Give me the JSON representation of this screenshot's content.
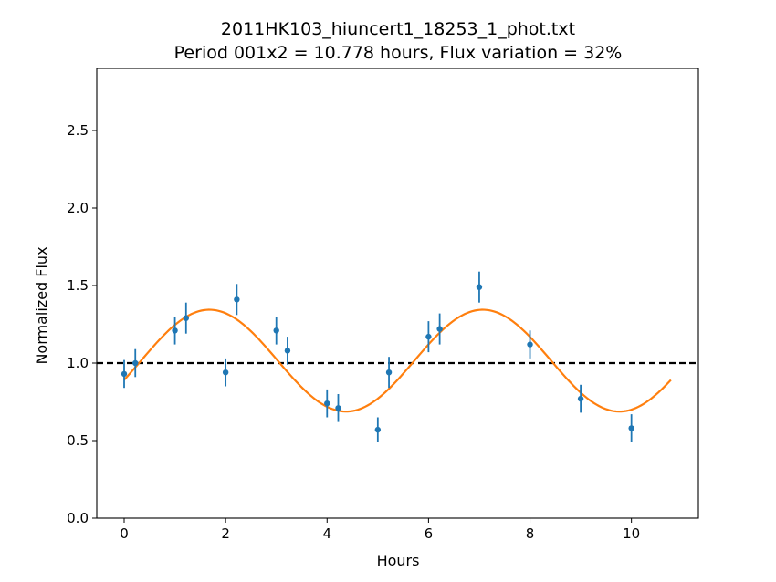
{
  "chart_data": {
    "type": "scatter",
    "title": "2011HK103_hiuncert1_18253_1_phot.txt",
    "subtitle": "Period 001x2 = 10.778 hours, Flux variation = 32%",
    "xlabel": "Hours",
    "ylabel": "Normalized Flux",
    "xlim": [
      -0.54,
      11.32
    ],
    "ylim": [
      0.0,
      2.9
    ],
    "xticks": [
      "0",
      "2",
      "4",
      "6",
      "8",
      "10"
    ],
    "yticks": [
      "0.0",
      "0.5",
      "1.0",
      "1.5",
      "2.0",
      "2.5"
    ],
    "grid": false,
    "series": [
      {
        "kind": "errorbar",
        "color": "#1f77b4",
        "x": [
          0.0,
          0.22,
          1.0,
          1.22,
          2.0,
          2.22,
          3.0,
          3.22,
          4.0,
          4.22,
          5.0,
          5.22,
          6.0,
          6.22,
          7.0,
          8.0,
          9.0,
          10.0
        ],
        "y": [
          0.93,
          1.0,
          1.21,
          1.29,
          0.94,
          1.41,
          1.21,
          1.08,
          0.74,
          0.71,
          0.57,
          0.94,
          1.17,
          1.22,
          1.49,
          1.12,
          0.77,
          0.58
        ],
        "yerr": [
          0.09,
          0.09,
          0.09,
          0.1,
          0.09,
          0.1,
          0.09,
          0.09,
          0.09,
          0.09,
          0.08,
          0.1,
          0.1,
          0.1,
          0.1,
          0.09,
          0.09,
          0.09
        ]
      },
      {
        "kind": "fit",
        "color": "#ff7f0e",
        "model": "sine",
        "period_hours": 5.389,
        "mean": 1.0157,
        "amplitude": 0.3283,
        "x_range": [
          0.0,
          10.778
        ],
        "phase_peak_hours": 1.68
      },
      {
        "kind": "reference_line",
        "color": "#000000",
        "style": "dashed",
        "y": 1.0
      }
    ]
  }
}
